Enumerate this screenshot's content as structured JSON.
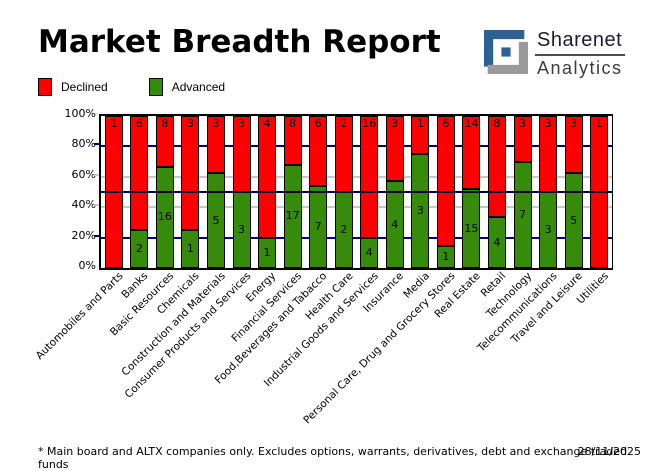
{
  "header": {
    "title": "Market Breadth Report"
  },
  "logo": {
    "name": "Sharenet",
    "sub": "Analytics",
    "blue": "#2e6093",
    "gray": "#9a9a9a"
  },
  "legend": {
    "items": [
      {
        "label": "Declined",
        "color": "#ff0000"
      },
      {
        "label": "Advanced",
        "color": "#378b0b"
      }
    ]
  },
  "footer": {
    "note": "* Main board and ALTX companies only. Excludes options, warrants, derivatives, debt and exchange traded funds",
    "date": "28/11/2025"
  },
  "chart_data": {
    "type": "bar",
    "stacked": true,
    "title": "Market Breadth Report",
    "note": "Each bar is 100% stacked; segment heights show share of total; labels on segments are company counts",
    "yticks": [
      "0%",
      "20%",
      "40%",
      "60%",
      "80%",
      "100%"
    ],
    "ylim": [
      0,
      100
    ],
    "grid": {
      "solid_midline_percent": 50,
      "dashed_lines_percent": [
        20,
        40,
        60,
        80
      ]
    },
    "legend_position": "top-left",
    "categories": [
      "Automobiles and Parts",
      "Banks",
      "Basic Resources",
      "Chemicals",
      "Construction and Materials",
      "Consumer Products and Services",
      "Energy",
      "Financial Services",
      "Food,Beverages and Tabacco",
      "Health Care",
      "Industrial Goods and Services",
      "Insurance",
      "Media",
      "Personal Care, Drug and Grocery Stores",
      "Real Estate",
      "Retail",
      "Technology",
      "Telecommunications",
      "Travel and Leisure",
      "Utilities"
    ],
    "series": [
      {
        "name": "Declined",
        "color": "#ff0000",
        "values": [
          1,
          6,
          8,
          3,
          3,
          3,
          4,
          8,
          6,
          2,
          16,
          3,
          1,
          6,
          14,
          8,
          3,
          3,
          3,
          1
        ]
      },
      {
        "name": "Advanced",
        "color": "#378b0b",
        "values": [
          0,
          2,
          16,
          1,
          5,
          3,
          1,
          17,
          7,
          2,
          4,
          4,
          3,
          1,
          15,
          4,
          7,
          3,
          5,
          0
        ]
      }
    ]
  }
}
